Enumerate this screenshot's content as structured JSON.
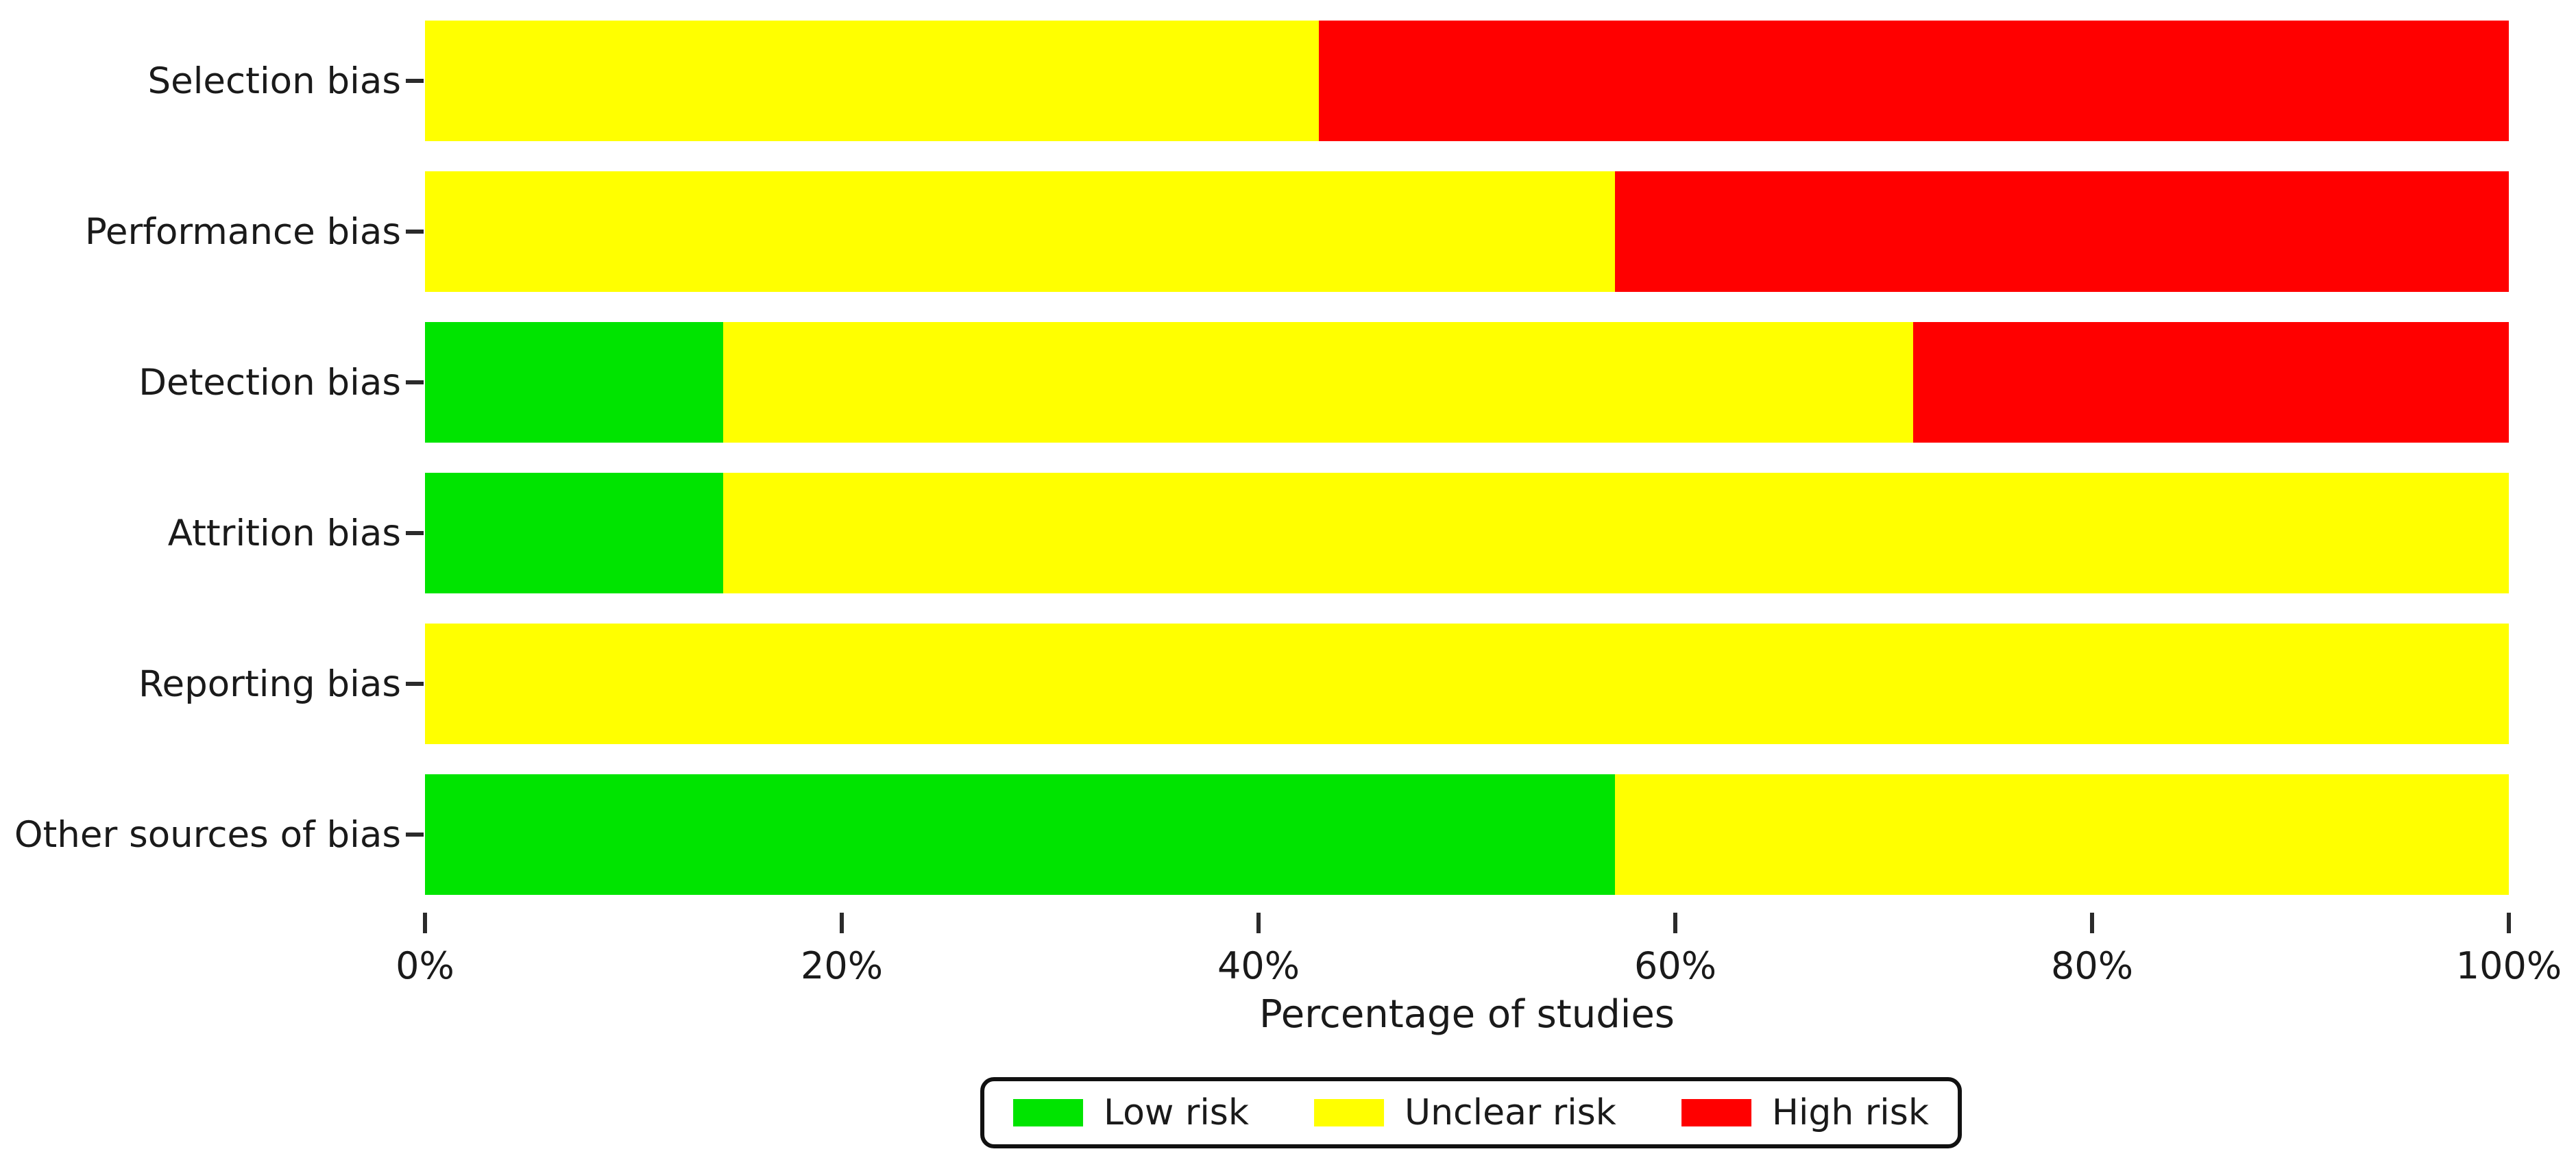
{
  "chart_data": {
    "type": "bar",
    "orientation": "horizontal",
    "stacked": true,
    "title": "",
    "xlabel": "Percentage of studies",
    "x_ticks": [
      "0%",
      "20%",
      "40%",
      "60%",
      "80%",
      "100%"
    ],
    "xlim": [
      0,
      100
    ],
    "grid": false,
    "legend_position": "bottom",
    "categories": [
      "Selection bias",
      "Performance bias",
      "Detection bias",
      "Attrition bias",
      "Reporting bias",
      "Other sources of bias"
    ],
    "series": [
      {
        "name": "Low risk",
        "color": "#00E400",
        "values": [
          0,
          0,
          14.3,
          14.3,
          0,
          57.1
        ]
      },
      {
        "name": "Unclear risk",
        "color": "#FFFF00",
        "values": [
          42.9,
          57.1,
          57.1,
          85.7,
          100,
          42.9
        ]
      },
      {
        "name": "High risk",
        "color": "#FF0000",
        "values": [
          57.1,
          42.9,
          28.6,
          0,
          0,
          0
        ]
      }
    ]
  },
  "colors": {
    "background": "#ffffff",
    "axis_text": "#1a1a1a",
    "tick_mark": "#2b2b2b",
    "legend_border": "#111111"
  }
}
